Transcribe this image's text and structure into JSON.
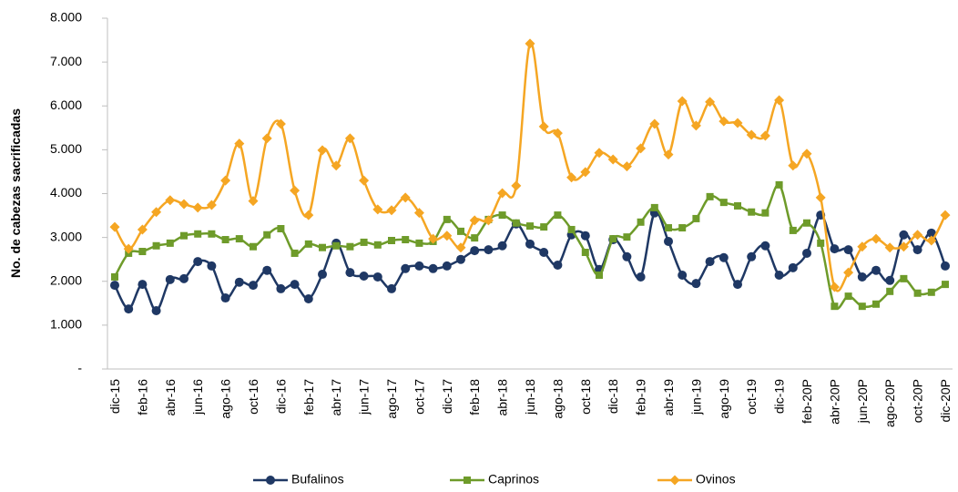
{
  "chart_data": {
    "type": "line",
    "y_label": "No. de cabezas sacrificadas",
    "categories": [
      "dic-15",
      null,
      "feb-16",
      null,
      "abr-16",
      null,
      "jun-16",
      null,
      "ago-16",
      null,
      "oct-16",
      null,
      "dic-16",
      null,
      "feb-17",
      null,
      "abr-17",
      null,
      "jun-17",
      null,
      "ago-17",
      null,
      "oct-17",
      null,
      "dic-17",
      null,
      "feb-18",
      null,
      "abr-18",
      null,
      "jun-18",
      null,
      "ago-18",
      null,
      "oct-18",
      null,
      "dic-18",
      null,
      "feb-19",
      null,
      "abr-19",
      null,
      "jun-19",
      null,
      "ago-19",
      null,
      "oct-19",
      null,
      "dic-19",
      null,
      "feb-20P",
      null,
      "abr-20P",
      null,
      "jun-20P",
      null,
      "ago-20P",
      null,
      "oct-20P",
      null,
      "dic-20P"
    ],
    "series": [
      {
        "name": "Bufalinos",
        "color": "#1f3864",
        "marker": "circle",
        "values": [
          1910,
          1370,
          1930,
          1330,
          2040,
          2060,
          2450,
          2350,
          1620,
          1980,
          1910,
          2250,
          1830,
          1930,
          1600,
          2160,
          2870,
          2200,
          2120,
          2100,
          1830,
          2290,
          2350,
          2290,
          2350,
          2500,
          2700,
          2720,
          2810,
          3310,
          2850,
          2660,
          2370,
          3060,
          3040,
          2270,
          2950,
          2560,
          2100,
          3560,
          2910,
          2140,
          1950,
          2450,
          2540,
          1930,
          2560,
          2810,
          2140,
          2310,
          2640,
          3510,
          2740,
          2720,
          2100,
          2250,
          2020,
          3060,
          2720,
          3100,
          2350
        ]
      },
      {
        "name": "Caprinos",
        "color": "#6e9b2a",
        "marker": "square",
        "values": [
          2100,
          2640,
          2680,
          2810,
          2870,
          3040,
          3080,
          3080,
          2950,
          2970,
          2790,
          3060,
          3200,
          2640,
          2850,
          2770,
          2810,
          2790,
          2890,
          2830,
          2930,
          2950,
          2870,
          2910,
          3410,
          3140,
          2990,
          3410,
          3510,
          3330,
          3260,
          3240,
          3510,
          3180,
          2660,
          2140,
          2970,
          3010,
          3350,
          3680,
          3220,
          3220,
          3430,
          3930,
          3800,
          3720,
          3580,
          3560,
          4200,
          3160,
          3330,
          2870,
          1430,
          1660,
          1430,
          1480,
          1770,
          2060,
          1730,
          1750,
          1930
        ]
      },
      {
        "name": "Ovinos",
        "color": "#f5a623",
        "marker": "diamond",
        "values": [
          3240,
          2740,
          3180,
          3580,
          3850,
          3760,
          3680,
          3740,
          4300,
          5140,
          3830,
          5260,
          5590,
          4070,
          3510,
          4990,
          4640,
          5260,
          4300,
          3640,
          3620,
          3910,
          3560,
          2970,
          3040,
          2770,
          3390,
          3390,
          4010,
          4180,
          7420,
          5530,
          5380,
          4370,
          4490,
          4930,
          4780,
          4620,
          5030,
          5590,
          4890,
          6110,
          5550,
          6090,
          5650,
          5610,
          5340,
          5320,
          6130,
          4640,
          4910,
          3910,
          1870,
          2200,
          2790,
          2970,
          2770,
          2790,
          3060,
          2930,
          3510
        ]
      }
    ],
    "ylim": [
      0,
      8000
    ],
    "yticks": [
      {
        "value": 0,
        "label": "-"
      },
      {
        "value": 1000,
        "label": "1.000"
      },
      {
        "value": 2000,
        "label": "2.000"
      },
      {
        "value": 3000,
        "label": "3.000"
      },
      {
        "value": 4000,
        "label": "4.000"
      },
      {
        "value": 5000,
        "label": "5.000"
      },
      {
        "value": 6000,
        "label": "6.000"
      },
      {
        "value": 7000,
        "label": "7.000"
      },
      {
        "value": 8000,
        "label": "8.000"
      }
    ],
    "legend": "bottom"
  }
}
